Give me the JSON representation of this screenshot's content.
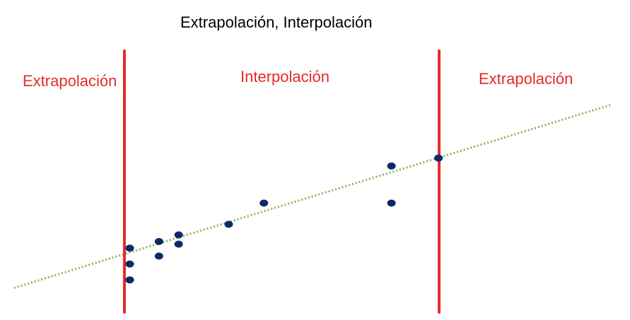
{
  "title": "Extrapolación, Interpolación",
  "regions": {
    "left": "Extrapolación",
    "middle": "Interpolación",
    "right": "Extrapolación"
  },
  "colors": {
    "boundary": "#e52b2b",
    "region_label": "#e52b2b",
    "points": "#0d2a66",
    "trend": "#7fb85a",
    "title": "#000000"
  },
  "chart_data": {
    "type": "scatter",
    "x_range": [
      0,
      100
    ],
    "y_range": [
      0,
      100
    ],
    "boundaries": [
      18.5,
      71.3
    ],
    "points": [
      {
        "x": 19.4,
        "y": 25
      },
      {
        "x": 19.4,
        "y": 19
      },
      {
        "x": 19.4,
        "y": 13
      },
      {
        "x": 24.3,
        "y": 27.5
      },
      {
        "x": 24.3,
        "y": 22
      },
      {
        "x": 27.6,
        "y": 30
      },
      {
        "x": 27.6,
        "y": 26.5
      },
      {
        "x": 36,
        "y": 34
      },
      {
        "x": 41.9,
        "y": 42
      },
      {
        "x": 63.3,
        "y": 56
      },
      {
        "x": 63.3,
        "y": 42
      },
      {
        "x": 71.2,
        "y": 59
      }
    ],
    "trend": {
      "x": [
        0,
        100
      ],
      "y": [
        10,
        79
      ]
    },
    "grid": false,
    "legend": "none"
  }
}
